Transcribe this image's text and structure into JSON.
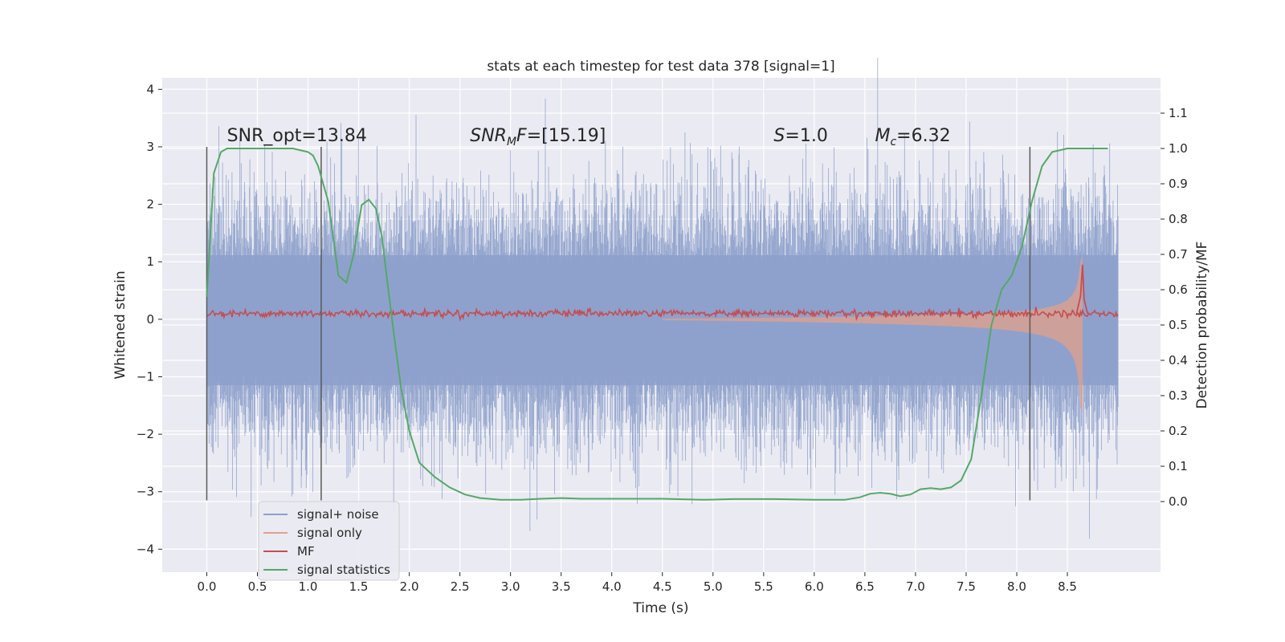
{
  "chart_data": {
    "type": "line",
    "title": "stats at each timestep for test data 378 [signal=1]",
    "xlabel": "Time (s)",
    "ylabel": "Whitened strain",
    "y2label": "Detection probability/MF",
    "xlim": [
      -0.44,
      9.42
    ],
    "ylim": [
      -4.4,
      4.2
    ],
    "y2lim": [
      -0.2,
      1.2
    ],
    "xticks": [
      0.0,
      0.5,
      1.0,
      1.5,
      2.0,
      2.5,
      3.0,
      3.5,
      4.0,
      4.5,
      5.0,
      5.5,
      6.0,
      6.5,
      7.0,
      7.5,
      8.0,
      8.5
    ],
    "yticks": [
      -4,
      -3,
      -2,
      -1,
      0,
      1,
      2,
      3,
      4
    ],
    "y2ticks": [
      0.0,
      0.1,
      0.2,
      0.3,
      0.4,
      0.5,
      0.6,
      0.7,
      0.8,
      0.9,
      1.0,
      1.1
    ],
    "grid": true,
    "legend_position": "lower-left",
    "annotations": [
      {
        "text": "SNR_opt=13.84",
        "x": 0.2,
        "y": 3.1
      },
      {
        "text": "SNR_MF=[15.19]",
        "x": 2.6,
        "y": 3.1
      },
      {
        "text": "S=1.0",
        "x": 5.6,
        "y": 3.1
      },
      {
        "text": "M_c=6.32",
        "x": 6.6,
        "y": 3.1
      }
    ],
    "vertical_lines_x": [
      0.0,
      1.13,
      8.13
    ],
    "vertical_lines_y_range": [
      -3.15,
      3.0
    ],
    "series": [
      {
        "name": "signal+ noise",
        "color": "#8da0cb",
        "x_range": [
          0.0,
          9.0
        ],
        "typical_envelope": [
          -1.85,
          1.8
        ],
        "peak_max": 3.85,
        "peak_min": -3.85
      },
      {
        "name": "signal only",
        "color": "#e3a08a",
        "chirp_start_x": 4.5,
        "merger_x": 8.65,
        "max_amplitude": 1.1
      },
      {
        "name": "MF",
        "color": "#c44e52",
        "baseline": 0.1,
        "x_range": [
          0.0,
          9.0
        ],
        "peak_x": 8.65,
        "peak_value": 0.95
      },
      {
        "name": "signal statistics",
        "color": "#55a868",
        "axis": "right",
        "x": [
          0.0,
          0.07,
          0.14,
          0.2,
          0.3,
          0.5,
          0.7,
          0.85,
          1.0,
          1.05,
          1.1,
          1.2,
          1.3,
          1.38,
          1.45,
          1.53,
          1.6,
          1.67,
          1.73,
          1.78,
          1.85,
          1.92,
          2.0,
          2.1,
          2.25,
          2.4,
          2.55,
          2.7,
          2.9,
          3.1,
          3.3,
          3.5,
          3.7,
          4.0,
          4.5,
          4.9,
          5.2,
          5.6,
          6.0,
          6.3,
          6.45,
          6.55,
          6.65,
          6.75,
          6.85,
          6.95,
          7.05,
          7.15,
          7.25,
          7.35,
          7.45,
          7.55,
          7.65,
          7.75,
          7.85,
          7.95,
          8.05,
          8.15,
          8.25,
          8.35,
          8.5,
          8.7,
          8.9
        ],
        "y": [
          0.58,
          0.93,
          0.99,
          1.0,
          1.0,
          1.0,
          1.0,
          1.0,
          0.99,
          0.98,
          0.95,
          0.85,
          0.64,
          0.62,
          0.7,
          0.84,
          0.855,
          0.83,
          0.75,
          0.63,
          0.47,
          0.32,
          0.2,
          0.11,
          0.07,
          0.04,
          0.02,
          0.01,
          0.005,
          0.005,
          0.008,
          0.01,
          0.008,
          0.008,
          0.008,
          0.005,
          0.007,
          0.007,
          0.005,
          0.005,
          0.012,
          0.022,
          0.025,
          0.022,
          0.015,
          0.02,
          0.035,
          0.038,
          0.035,
          0.04,
          0.06,
          0.12,
          0.3,
          0.5,
          0.6,
          0.64,
          0.72,
          0.85,
          0.95,
          0.99,
          1.0,
          1.0,
          1.0
        ]
      }
    ]
  }
}
